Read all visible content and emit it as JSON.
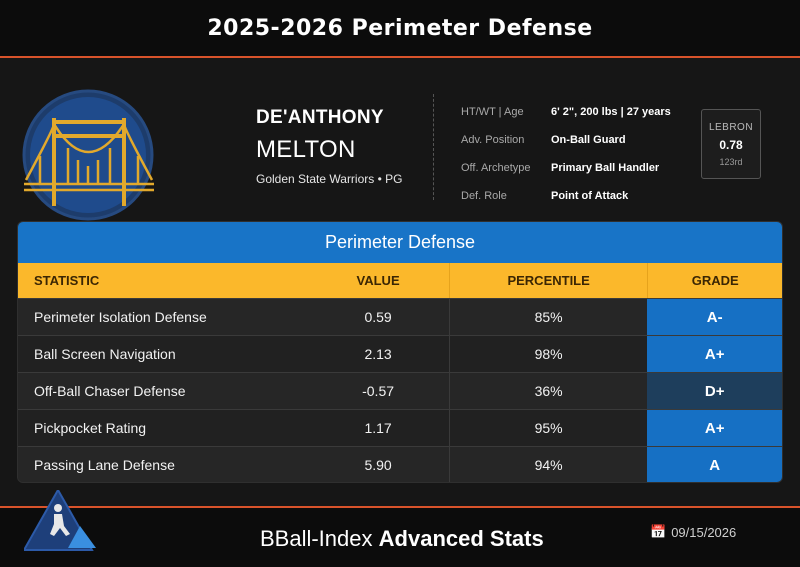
{
  "title": "2025-2026 Perimeter Defense",
  "player": {
    "first_name": "DE'ANTHONY",
    "last_name": "MELTON",
    "team_pos": "Golden State Warriors • PG"
  },
  "info": [
    {
      "label": "HT/WT | Age",
      "value": "6' 2\", 200 lbs | 27 years"
    },
    {
      "label": "Adv. Position",
      "value": "On-Ball Guard"
    },
    {
      "label": "Off. Archetype",
      "value": "Primary Ball Handler"
    },
    {
      "label": "Def. Role",
      "value": "Point of Attack"
    }
  ],
  "lebron": {
    "label": "LEBRON",
    "value": "0.78",
    "rank": "123rd"
  },
  "table": {
    "title": "Perimeter Defense",
    "headers": {
      "statistic": "STATISTIC",
      "value": "VALUE",
      "percentile": "PERCENTILE",
      "grade": "GRADE"
    },
    "rows": [
      {
        "statistic": "Perimeter Isolation Defense",
        "value": "0.59",
        "percentile": "85%",
        "grade": "A-",
        "grade_color": "#1670c4"
      },
      {
        "statistic": "Ball Screen Navigation",
        "value": "2.13",
        "percentile": "98%",
        "grade": "A+",
        "grade_color": "#1670c4"
      },
      {
        "statistic": "Off-Ball Chaser Defense",
        "value": "-0.57",
        "percentile": "36%",
        "grade": "D+",
        "grade_color": "#1e3e5c"
      },
      {
        "statistic": "Pickpocket Rating",
        "value": "1.17",
        "percentile": "95%",
        "grade": "A+",
        "grade_color": "#1670c4"
      },
      {
        "statistic": "Passing Lane Defense",
        "value": "5.90",
        "percentile": "94%",
        "grade": "A",
        "grade_color": "#1670c4"
      }
    ]
  },
  "footer": {
    "brand": "BBall-Index",
    "suffix": "Advanced Stats",
    "date": "09/15/2026"
  },
  "colors": {
    "accent": "#d9532b",
    "blue": "#1874c7",
    "gold": "#fbb82b"
  }
}
